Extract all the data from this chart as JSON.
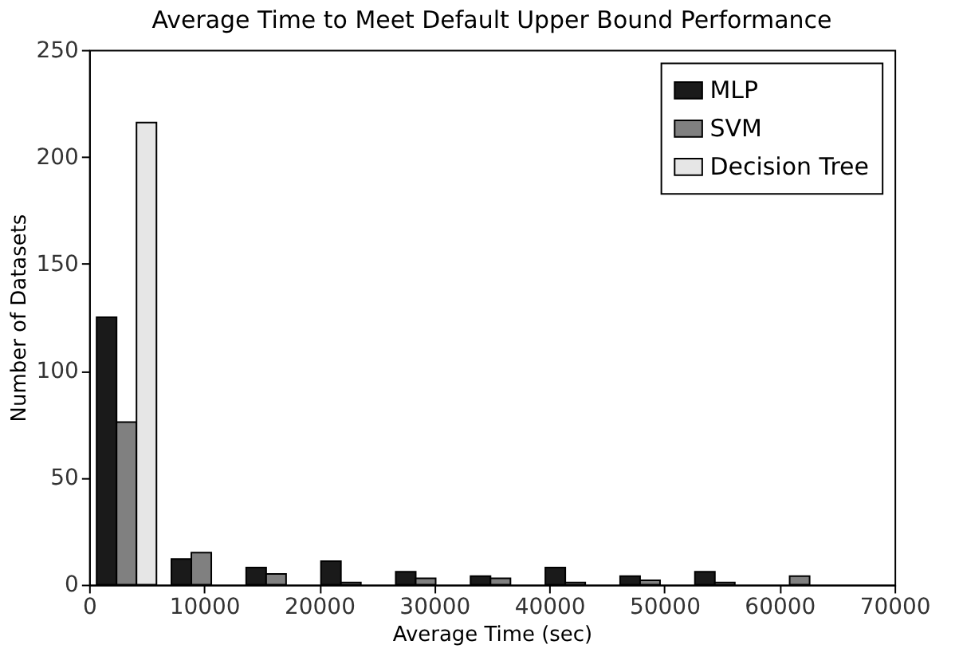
{
  "chart_data": {
    "type": "histogram",
    "title": "Average Time to Meet Default Upper Bound Performance",
    "xlabel": "Average Time (sec)",
    "ylabel": "Number of Datasets",
    "bins": [
      0,
      6500,
      13000,
      19500,
      26000,
      32500,
      39000,
      45500,
      52000,
      58500,
      65000
    ],
    "series": [
      {
        "name": "MLP",
        "color": "#1a1a1a",
        "values": [
          125,
          12,
          8,
          11,
          6,
          4,
          8,
          4,
          6,
          0
        ]
      },
      {
        "name": "SVM",
        "color": "#808080",
        "values": [
          76,
          15,
          5,
          1,
          3,
          3,
          1,
          2,
          1,
          4
        ]
      },
      {
        "name": "Decision Tree",
        "color": "#e6e6e6",
        "values": [
          216,
          0,
          0,
          0,
          0,
          0,
          0,
          0,
          0,
          0
        ]
      }
    ],
    "xlim": [
      0,
      70000
    ],
    "xticks": [
      0,
      10000,
      20000,
      30000,
      40000,
      50000,
      60000,
      70000
    ],
    "ylim": [
      0,
      250
    ],
    "yticks": [
      0,
      50,
      100,
      150,
      200,
      250
    ],
    "grid": false,
    "legend": "top right"
  }
}
